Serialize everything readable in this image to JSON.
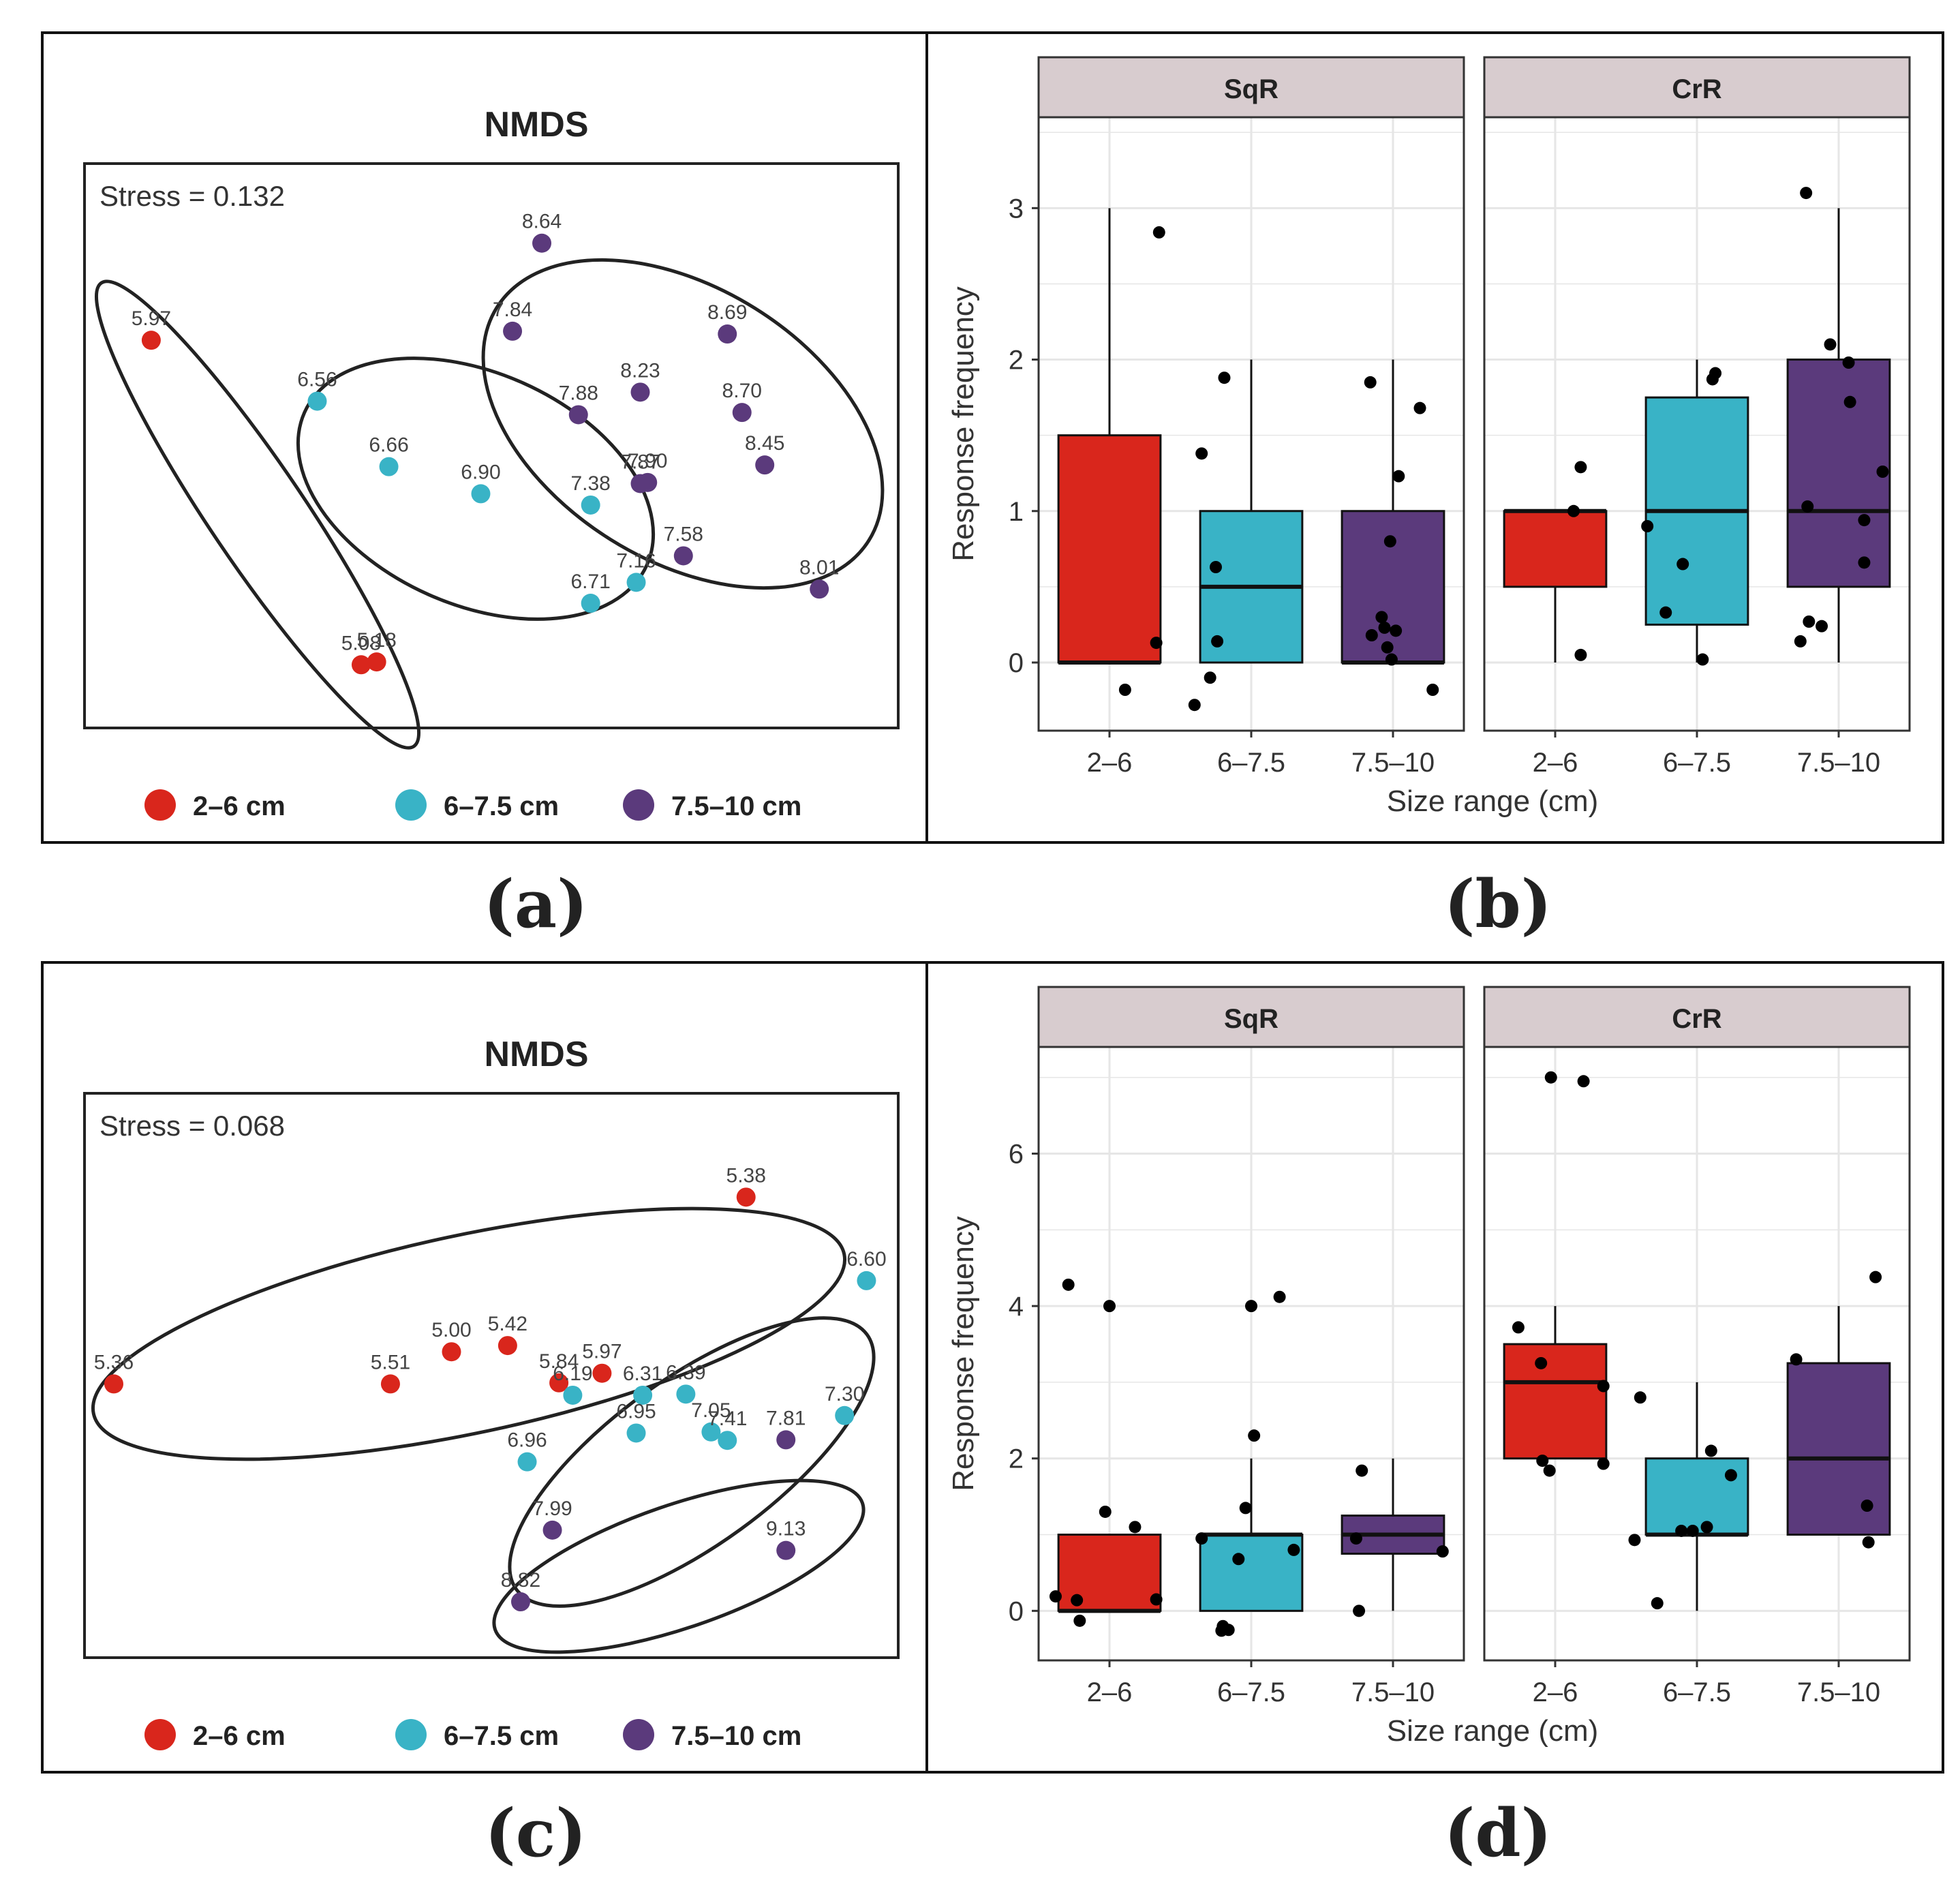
{
  "colors": {
    "small": "#d9261c",
    "medium": "#39b3c6",
    "large": "#5b3a7c",
    "strip_fill": "#d8cccf",
    "grid": "#e6e6e6",
    "point": "#000000"
  },
  "chart_data": [
    {
      "panel": "(a)",
      "type": "scatter",
      "title": "NMDS",
      "stress_label": "Stress = 0.132",
      "legend": [
        {
          "label": "2–6 cm",
          "group": "small"
        },
        {
          "label": "6–7.5 cm",
          "group": "medium"
        },
        {
          "label": "7.5–10 cm",
          "group": "large"
        }
      ],
      "xlim": [
        0,
        100
      ],
      "ylim": [
        0,
        100
      ],
      "points": [
        {
          "label": "5.97",
          "group": "small",
          "x": 8.2,
          "y": 68.7
        },
        {
          "label": "5.18",
          "group": "small",
          "x": 35.9,
          "y": 11.7
        },
        {
          "label": "5.08",
          "group": "small",
          "x": 34.0,
          "y": 11.2
        },
        {
          "label": "6.56",
          "group": "medium",
          "x": 28.6,
          "y": 57.9
        },
        {
          "label": "6.66",
          "group": "medium",
          "x": 37.4,
          "y": 46.3
        },
        {
          "label": "6.90",
          "group": "medium",
          "x": 48.7,
          "y": 41.5
        },
        {
          "label": "7.38",
          "group": "medium",
          "x": 62.2,
          "y": 39.5
        },
        {
          "label": "7.16",
          "group": "medium",
          "x": 67.8,
          "y": 25.8
        },
        {
          "label": "6.71",
          "group": "medium",
          "x": 62.2,
          "y": 22.1
        },
        {
          "label": "8.64",
          "group": "large",
          "x": 56.2,
          "y": 85.9
        },
        {
          "label": "7.84",
          "group": "large",
          "x": 52.6,
          "y": 70.3
        },
        {
          "label": "8.69",
          "group": "large",
          "x": 79.0,
          "y": 69.8
        },
        {
          "label": "8.23",
          "group": "large",
          "x": 68.3,
          "y": 59.5
        },
        {
          "label": "7.88",
          "group": "large",
          "x": 60.7,
          "y": 55.5
        },
        {
          "label": "8.70",
          "group": "large",
          "x": 80.8,
          "y": 55.9
        },
        {
          "label": "7.90",
          "group": "large",
          "x": 69.2,
          "y": 43.5
        },
        {
          "label": "7.87",
          "group": "large",
          "x": 68.3,
          "y": 43.3
        },
        {
          "label": "8.45",
          "group": "large",
          "x": 83.6,
          "y": 46.6
        },
        {
          "label": "7.58",
          "group": "large",
          "x": 73.6,
          "y": 30.5
        },
        {
          "label": "8.01",
          "group": "large",
          "x": 90.3,
          "y": 24.6
        }
      ]
    },
    {
      "panel": "(b)",
      "type": "box",
      "xlabel": "Size range (cm)",
      "ylabel": "Response frequency",
      "ylim": [
        -0.45,
        3.6
      ],
      "yticks": [
        0,
        1,
        2,
        3
      ],
      "categories": [
        "2–6",
        "6–7.5",
        "7.5–10"
      ],
      "facets": [
        {
          "name": "SqR",
          "boxes": [
            {
              "category": "2–6",
              "group": "small",
              "min": 0,
              "q1": 0,
              "median": 0,
              "q3": 1.5,
              "max": 3
            },
            {
              "category": "6–7.5",
              "group": "medium",
              "min": 0,
              "q1": 0,
              "median": 0.5,
              "q3": 1,
              "max": 2
            },
            {
              "category": "7.5–10",
              "group": "large",
              "min": 0,
              "q1": 0,
              "median": 0,
              "q3": 1,
              "max": 2
            }
          ],
          "points": [
            {
              "category": "2–6",
              "dx": 0.35,
              "y": 2.84
            },
            {
              "category": "2–6",
              "dx": 0.33,
              "y": 0.13
            },
            {
              "category": "2–6",
              "dx": 0.11,
              "y": -0.18
            },
            {
              "category": "6–7.5",
              "dx": -0.19,
              "y": 1.88
            },
            {
              "category": "6–7.5",
              "dx": -0.35,
              "y": 1.38
            },
            {
              "category": "6–7.5",
              "dx": -0.25,
              "y": 0.63
            },
            {
              "category": "6–7.5",
              "dx": -0.24,
              "y": 0.14
            },
            {
              "category": "6–7.5",
              "dx": -0.29,
              "y": -0.1
            },
            {
              "category": "6–7.5",
              "dx": -0.4,
              "y": -0.28
            },
            {
              "category": "7.5–10",
              "dx": -0.16,
              "y": 1.85
            },
            {
              "category": "7.5–10",
              "dx": 0.19,
              "y": 1.68
            },
            {
              "category": "7.5–10",
              "dx": 0.04,
              "y": 1.23
            },
            {
              "category": "7.5–10",
              "dx": -0.02,
              "y": 0.8
            },
            {
              "category": "7.5–10",
              "dx": -0.08,
              "y": 0.3
            },
            {
              "category": "7.5–10",
              "dx": -0.06,
              "y": 0.23
            },
            {
              "category": "7.5–10",
              "dx": 0.02,
              "y": 0.21
            },
            {
              "category": "7.5–10",
              "dx": -0.15,
              "y": 0.18
            },
            {
              "category": "7.5–10",
              "dx": -0.04,
              "y": 0.1
            },
            {
              "category": "7.5–10",
              "dx": -0.01,
              "y": 0.02
            },
            {
              "category": "7.5–10",
              "dx": 0.28,
              "y": -0.18
            }
          ]
        },
        {
          "name": "CrR",
          "boxes": [
            {
              "category": "2–6",
              "group": "small",
              "min": 0,
              "q1": 0.5,
              "median": 1,
              "q3": 1,
              "max": 1
            },
            {
              "category": "6–7.5",
              "group": "medium",
              "min": 0,
              "q1": 0.25,
              "median": 1,
              "q3": 1.75,
              "max": 2
            },
            {
              "category": "7.5–10",
              "group": "large",
              "min": 0,
              "q1": 0.5,
              "median": 1,
              "q3": 2,
              "max": 3
            }
          ],
          "points": [
            {
              "category": "2–6",
              "dx": 0.18,
              "y": 1.29
            },
            {
              "category": "2–6",
              "dx": 0.13,
              "y": 1.0
            },
            {
              "category": "2–6",
              "dx": 0.18,
              "y": 0.05
            },
            {
              "category": "6–7.5",
              "dx": 0.13,
              "y": 1.91
            },
            {
              "category": "6–7.5",
              "dx": 0.11,
              "y": 1.87
            },
            {
              "category": "6–7.5",
              "dx": -0.35,
              "y": 0.9
            },
            {
              "category": "6–7.5",
              "dx": -0.1,
              "y": 0.65
            },
            {
              "category": "6–7.5",
              "dx": -0.22,
              "y": 0.33
            },
            {
              "category": "6–7.5",
              "dx": 0.04,
              "y": 0.02
            },
            {
              "category": "7.5–10",
              "dx": -0.23,
              "y": 3.1
            },
            {
              "category": "7.5–10",
              "dx": -0.06,
              "y": 2.1
            },
            {
              "category": "7.5–10",
              "dx": 0.07,
              "y": 1.98
            },
            {
              "category": "7.5–10",
              "dx": 0.08,
              "y": 1.72
            },
            {
              "category": "7.5–10",
              "dx": 0.31,
              "y": 1.26
            },
            {
              "category": "7.5–10",
              "dx": -0.22,
              "y": 1.03
            },
            {
              "category": "7.5–10",
              "dx": 0.18,
              "y": 0.94
            },
            {
              "category": "7.5–10",
              "dx": 0.18,
              "y": 0.66
            },
            {
              "category": "7.5–10",
              "dx": -0.21,
              "y": 0.27
            },
            {
              "category": "7.5–10",
              "dx": -0.12,
              "y": 0.24
            },
            {
              "category": "7.5–10",
              "dx": -0.27,
              "y": 0.14
            }
          ]
        }
      ]
    },
    {
      "panel": "(c)",
      "type": "scatter",
      "title": "NMDS",
      "stress_label": "Stress = 0.068",
      "legend": [
        {
          "label": "2–6 cm",
          "group": "small"
        },
        {
          "label": "6–7.5 cm",
          "group": "medium"
        },
        {
          "label": "7.5–10 cm",
          "group": "large"
        }
      ],
      "xlim": [
        0,
        100
      ],
      "ylim": [
        0,
        100
      ],
      "points": [
        {
          "label": "5.36",
          "group": "small",
          "x": 3.6,
          "y": 48.5
        },
        {
          "label": "5.51",
          "group": "small",
          "x": 37.6,
          "y": 48.5
        },
        {
          "label": "5.00",
          "group": "small",
          "x": 45.1,
          "y": 54.2
        },
        {
          "label": "5.42",
          "group": "small",
          "x": 52.0,
          "y": 55.3
        },
        {
          "label": "5.84",
          "group": "small",
          "x": 58.3,
          "y": 48.7
        },
        {
          "label": "5.97",
          "group": "small",
          "x": 63.6,
          "y": 50.4
        },
        {
          "label": "5.38",
          "group": "small",
          "x": 81.3,
          "y": 81.6
        },
        {
          "label": "6.60",
          "group": "medium",
          "x": 96.1,
          "y": 66.8
        },
        {
          "label": "6.19",
          "group": "medium",
          "x": 60.0,
          "y": 46.5
        },
        {
          "label": "6.31",
          "group": "medium",
          "x": 68.6,
          "y": 46.5
        },
        {
          "label": "6.39",
          "group": "medium",
          "x": 73.9,
          "y": 46.7
        },
        {
          "label": "6.95",
          "group": "medium",
          "x": 67.8,
          "y": 39.8
        },
        {
          "label": "7.05",
          "group": "medium",
          "x": 77.0,
          "y": 40.0
        },
        {
          "label": "7.41",
          "group": "medium",
          "x": 79.0,
          "y": 38.5
        },
        {
          "label": "7.30",
          "group": "medium",
          "x": 93.4,
          "y": 42.9
        },
        {
          "label": "6.96",
          "group": "medium",
          "x": 54.4,
          "y": 34.7
        },
        {
          "label": "7.81",
          "group": "large",
          "x": 86.2,
          "y": 38.6
        },
        {
          "label": "7.99",
          "group": "large",
          "x": 57.5,
          "y": 22.6
        },
        {
          "label": "9.13",
          "group": "large",
          "x": 86.2,
          "y": 19.0
        },
        {
          "label": "8.82",
          "group": "large",
          "x": 53.6,
          "y": 9.9
        }
      ]
    },
    {
      "panel": "(d)",
      "type": "box",
      "xlabel": "Size range (cm)",
      "ylabel": "Response frequency",
      "ylim": [
        -0.65,
        7.4
      ],
      "yticks": [
        0,
        2,
        4,
        6
      ],
      "categories": [
        "2–6",
        "6–7.5",
        "7.5–10"
      ],
      "facets": [
        {
          "name": "SqR",
          "boxes": [
            {
              "category": "2–6",
              "group": "small",
              "min": 0,
              "q1": 0,
              "median": 0,
              "q3": 1,
              "max": 1
            },
            {
              "category": "6–7.5",
              "group": "medium",
              "min": 0,
              "q1": 0,
              "median": 1,
              "q3": 1,
              "max": 2
            },
            {
              "category": "7.5–10",
              "group": "large",
              "min": 0,
              "q1": 0.75,
              "median": 1,
              "q3": 1.25,
              "max": 2
            }
          ],
          "points": [
            {
              "category": "2–6",
              "dx": -0.29,
              "y": 4.28
            },
            {
              "category": "2–6",
              "dx": 0.0,
              "y": 4.0
            },
            {
              "category": "2–6",
              "dx": -0.03,
              "y": 1.3
            },
            {
              "category": "2–6",
              "dx": 0.18,
              "y": 1.1
            },
            {
              "category": "2–6",
              "dx": -0.38,
              "y": 0.19
            },
            {
              "category": "2–6",
              "dx": -0.23,
              "y": 0.14
            },
            {
              "category": "2–6",
              "dx": 0.33,
              "y": 0.15
            },
            {
              "category": "2–6",
              "dx": -0.21,
              "y": -0.13
            },
            {
              "category": "6–7.5",
              "dx": 0.2,
              "y": 4.12
            },
            {
              "category": "6–7.5",
              "dx": 0.0,
              "y": 4.0
            },
            {
              "category": "6–7.5",
              "dx": 0.02,
              "y": 2.3
            },
            {
              "category": "6–7.5",
              "dx": -0.04,
              "y": 1.35
            },
            {
              "category": "6–7.5",
              "dx": -0.35,
              "y": 0.95
            },
            {
              "category": "6–7.5",
              "dx": 0.3,
              "y": 0.8
            },
            {
              "category": "6–7.5",
              "dx": -0.09,
              "y": 0.68
            },
            {
              "category": "6–7.5",
              "dx": -0.2,
              "y": -0.2
            },
            {
              "category": "6–7.5",
              "dx": -0.16,
              "y": -0.25
            },
            {
              "category": "6–7.5",
              "dx": -0.21,
              "y": -0.26
            },
            {
              "category": "7.5–10",
              "dx": -0.22,
              "y": 1.84
            },
            {
              "category": "7.5–10",
              "dx": -0.26,
              "y": 0.95
            },
            {
              "category": "7.5–10",
              "dx": 0.35,
              "y": 0.78
            },
            {
              "category": "7.5–10",
              "dx": -0.24,
              "y": 0.0
            }
          ]
        },
        {
          "name": "CrR",
          "boxes": [
            {
              "category": "2–6",
              "group": "small",
              "min": 2,
              "q1": 2,
              "median": 3,
              "q3": 3.5,
              "max": 4
            },
            {
              "category": "6–7.5",
              "group": "medium",
              "min": 0,
              "q1": 1,
              "median": 1,
              "q3": 2,
              "max": 3
            },
            {
              "category": "7.5–10",
              "group": "large",
              "min": 1,
              "q1": 1,
              "median": 2,
              "q3": 3.25,
              "max": 4
            }
          ],
          "points": [
            {
              "category": "2–6",
              "dx": -0.03,
              "y": 7.0
            },
            {
              "category": "2–6",
              "dx": 0.2,
              "y": 6.95
            },
            {
              "category": "2–6",
              "dx": -0.26,
              "y": 3.72
            },
            {
              "category": "2–6",
              "dx": -0.1,
              "y": 3.25
            },
            {
              "category": "2–6",
              "dx": 0.34,
              "y": 2.95
            },
            {
              "category": "2–6",
              "dx": -0.09,
              "y": 1.97
            },
            {
              "category": "2–6",
              "dx": 0.34,
              "y": 1.93
            },
            {
              "category": "2–6",
              "dx": -0.04,
              "y": 1.84
            },
            {
              "category": "6–7.5",
              "dx": -0.4,
              "y": 2.8
            },
            {
              "category": "6–7.5",
              "dx": 0.1,
              "y": 2.1
            },
            {
              "category": "6–7.5",
              "dx": 0.24,
              "y": 1.78
            },
            {
              "category": "6–7.5",
              "dx": -0.11,
              "y": 1.05
            },
            {
              "category": "6–7.5",
              "dx": -0.03,
              "y": 1.05
            },
            {
              "category": "6–7.5",
              "dx": 0.07,
              "y": 1.1
            },
            {
              "category": "6–7.5",
              "dx": -0.44,
              "y": 0.93
            },
            {
              "category": "6–7.5",
              "dx": -0.28,
              "y": 0.1
            },
            {
              "category": "7.5–10",
              "dx": -0.3,
              "y": 3.3
            },
            {
              "category": "7.5–10",
              "dx": 0.26,
              "y": 4.38
            },
            {
              "category": "7.5–10",
              "dx": 0.2,
              "y": 1.38
            },
            {
              "category": "7.5–10",
              "dx": 0.21,
              "y": 0.9
            }
          ]
        }
      ]
    }
  ]
}
